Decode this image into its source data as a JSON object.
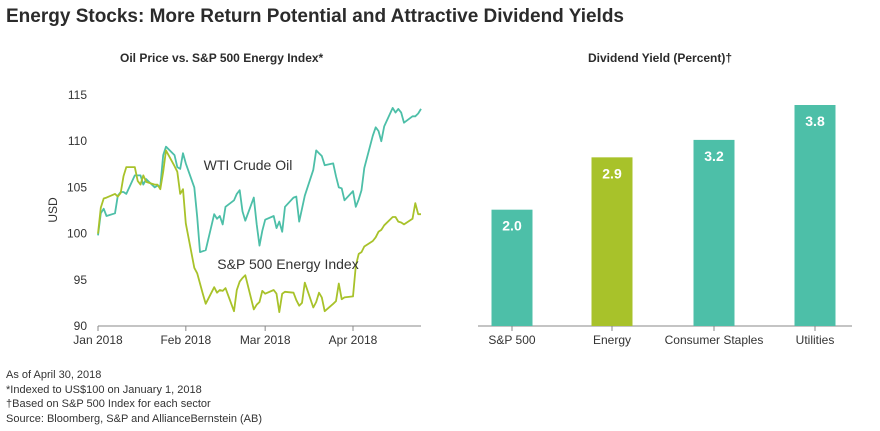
{
  "title": "Energy Stocks: More Return Potential and Attractive Dividend Yields",
  "colors": {
    "teal": "#4dbfa8",
    "lime": "#a8c22a",
    "axis": "#777777",
    "grid": "#d9d9d9"
  },
  "chart_data": [
    {
      "type": "line",
      "title": "Oil Price vs. S&P 500 Energy Index*",
      "ylabel": "USD",
      "xlabel": "",
      "ylim": [
        90,
        115
      ],
      "yticks": [
        90,
        95,
        100,
        105,
        110,
        115
      ],
      "xticks": [
        {
          "label": "Jan 2018",
          "day": 0
        },
        {
          "label": "Feb 2018",
          "day": 31
        },
        {
          "label": "Mar 2018",
          "day": 59
        },
        {
          "label": "Apr 2018",
          "day": 90
        }
      ],
      "series": [
        {
          "name": "WTI Crude Oil",
          "color": "#4dbfa8",
          "points": [
            [
              0,
              99.8
            ],
            [
              1,
              102.2
            ],
            [
              2,
              102.7
            ],
            [
              3,
              101.9
            ],
            [
              6,
              102.2
            ],
            [
              7,
              104.1
            ],
            [
              8,
              104.5
            ],
            [
              9,
              104.5
            ],
            [
              10,
              104.3
            ],
            [
              13,
              106.3
            ],
            [
              14,
              106.3
            ],
            [
              15,
              106.3
            ],
            [
              16,
              105.3
            ],
            [
              17,
              105.9
            ],
            [
              20,
              105.0
            ],
            [
              21,
              105.2
            ],
            [
              22,
              105.1
            ],
            [
              23,
              108.5
            ],
            [
              24,
              109.4
            ],
            [
              27,
              108.5
            ],
            [
              28,
              107.2
            ],
            [
              29,
              107.0
            ],
            [
              30,
              108.7
            ],
            [
              31,
              107.6
            ],
            [
              34,
              105.0
            ],
            [
              35,
              101.8
            ],
            [
              36,
              98.0
            ],
            [
              37,
              98.1
            ],
            [
              38,
              98.2
            ],
            [
              41,
              102.1
            ],
            [
              42,
              101.6
            ],
            [
              43,
              101.9
            ],
            [
              44,
              101.0
            ],
            [
              45,
              102.9
            ],
            [
              48,
              103.6
            ],
            [
              49,
              104.3
            ],
            [
              50,
              104.7
            ],
            [
              51,
              102.4
            ],
            [
              52,
              101.4
            ],
            [
              55,
              103.9
            ],
            [
              56,
              101.0
            ],
            [
              57,
              98.7
            ],
            [
              58,
              100.3
            ],
            [
              59,
              101.5
            ],
            [
              62,
              101.9
            ],
            [
              63,
              100.6
            ],
            [
              64,
              101.3
            ],
            [
              65,
              100.2
            ],
            [
              66,
              102.9
            ],
            [
              69,
              103.9
            ],
            [
              70,
              104.0
            ],
            [
              71,
              101.3
            ],
            [
              72,
              102.7
            ],
            [
              73,
              104.1
            ],
            [
              76,
              106.9
            ],
            [
              77,
              109.0
            ],
            [
              78,
              108.7
            ],
            [
              79,
              108.4
            ],
            [
              80,
              107.4
            ],
            [
              83,
              107.6
            ],
            [
              84,
              106.2
            ],
            [
              85,
              105.0
            ],
            [
              86,
              104.9
            ],
            [
              87,
              103.6
            ],
            [
              90,
              104.6
            ],
            [
              91,
              102.9
            ],
            [
              92,
              103.7
            ],
            [
              93,
              104.7
            ],
            [
              94,
              107.1
            ],
            [
              97,
              110.6
            ],
            [
              98,
              111.5
            ],
            [
              99,
              111.1
            ],
            [
              100,
              110.0
            ],
            [
              101,
              111.6
            ],
            [
              104,
              113.6
            ],
            [
              105,
              113.1
            ],
            [
              106,
              113.5
            ],
            [
              107,
              113.1
            ],
            [
              108,
              112.0
            ],
            [
              111,
              112.7
            ],
            [
              112,
              112.7
            ],
            [
              113,
              113.0
            ],
            [
              114,
              113.5
            ]
          ]
        },
        {
          "name": "S&P 500 Energy Index",
          "color": "#a8c22a",
          "points": [
            [
              0,
              100.0
            ],
            [
              1,
              102.8
            ],
            [
              2,
              103.8
            ],
            [
              3,
              103.9
            ],
            [
              6,
              104.3
            ],
            [
              7,
              104.0
            ],
            [
              8,
              104.4
            ],
            [
              9,
              106.2
            ],
            [
              10,
              107.2
            ],
            [
              13,
              107.2
            ],
            [
              14,
              105.7
            ],
            [
              15,
              105.3
            ],
            [
              16,
              106.3
            ],
            [
              17,
              105.6
            ],
            [
              20,
              105.3
            ],
            [
              21,
              105.3
            ],
            [
              22,
              104.8
            ],
            [
              23,
              106.7
            ],
            [
              24,
              109.0
            ],
            [
              27,
              107.3
            ],
            [
              28,
              106.7
            ],
            [
              29,
              104.3
            ],
            [
              30,
              104.8
            ],
            [
              31,
              101.1
            ],
            [
              34,
              96.3
            ],
            [
              35,
              95.7
            ],
            [
              36,
              94.6
            ],
            [
              37,
              93.5
            ],
            [
              38,
              92.4
            ],
            [
              41,
              94.2
            ],
            [
              42,
              93.6
            ],
            [
              43,
              93.9
            ],
            [
              44,
              93.8
            ],
            [
              45,
              94.1
            ],
            [
              48,
              91.6
            ],
            [
              49,
              93.9
            ],
            [
              50,
              94.8
            ],
            [
              51,
              95.2
            ],
            [
              52,
              95.5
            ],
            [
              55,
              91.8
            ],
            [
              56,
              92.3
            ],
            [
              57,
              92.6
            ],
            [
              58,
              93.8
            ],
            [
              59,
              93.5
            ],
            [
              62,
              93.9
            ],
            [
              63,
              93.5
            ],
            [
              64,
              91.5
            ],
            [
              65,
              93.5
            ],
            [
              66,
              93.7
            ],
            [
              69,
              93.6
            ],
            [
              70,
              92.8
            ],
            [
              71,
              92.2
            ],
            [
              72,
              92.5
            ],
            [
              73,
              94.7
            ],
            [
              76,
              92.0
            ],
            [
              77,
              92.6
            ],
            [
              78,
              93.6
            ],
            [
              79,
              93.1
            ],
            [
              80,
              91.6
            ],
            [
              83,
              92.4
            ],
            [
              84,
              92.7
            ],
            [
              85,
              94.6
            ],
            [
              86,
              92.9
            ],
            [
              87,
              93.1
            ],
            [
              90,
              93.2
            ],
            [
              91,
              96.5
            ],
            [
              92,
              97.8
            ],
            [
              93,
              98.0
            ],
            [
              94,
              98.6
            ],
            [
              97,
              99.2
            ],
            [
              98,
              99.6
            ],
            [
              99,
              100.2
            ],
            [
              100,
              100.4
            ],
            [
              101,
              100.9
            ],
            [
              104,
              101.8
            ],
            [
              105,
              101.8
            ],
            [
              106,
              101.3
            ],
            [
              107,
              101.2
            ],
            [
              108,
              101.0
            ],
            [
              111,
              101.6
            ],
            [
              112,
              103.3
            ],
            [
              113,
              102.1
            ],
            [
              114,
              102.1
            ]
          ]
        }
      ]
    },
    {
      "type": "bar",
      "title": "Dividend Yield (Percent)†",
      "categories": [
        "S&P 500",
        "Energy",
        "Consumer Staples",
        "Utilities"
      ],
      "values": [
        2.0,
        2.9,
        3.2,
        3.8
      ],
      "value_labels": [
        "2.0",
        "2.9",
        "3.2",
        "3.8"
      ],
      "colors": [
        "#4dbfa8",
        "#a8c22a",
        "#4dbfa8",
        "#4dbfa8"
      ],
      "ylim": [
        0,
        4
      ]
    }
  ],
  "footnotes": [
    "As of April 30, 2018",
    "*Indexed to US$100 on January 1, 2018",
    "†Based on S&P 500 Index for each sector",
    "Source: Bloomberg, S&P and AllianceBernstein (AB)"
  ]
}
